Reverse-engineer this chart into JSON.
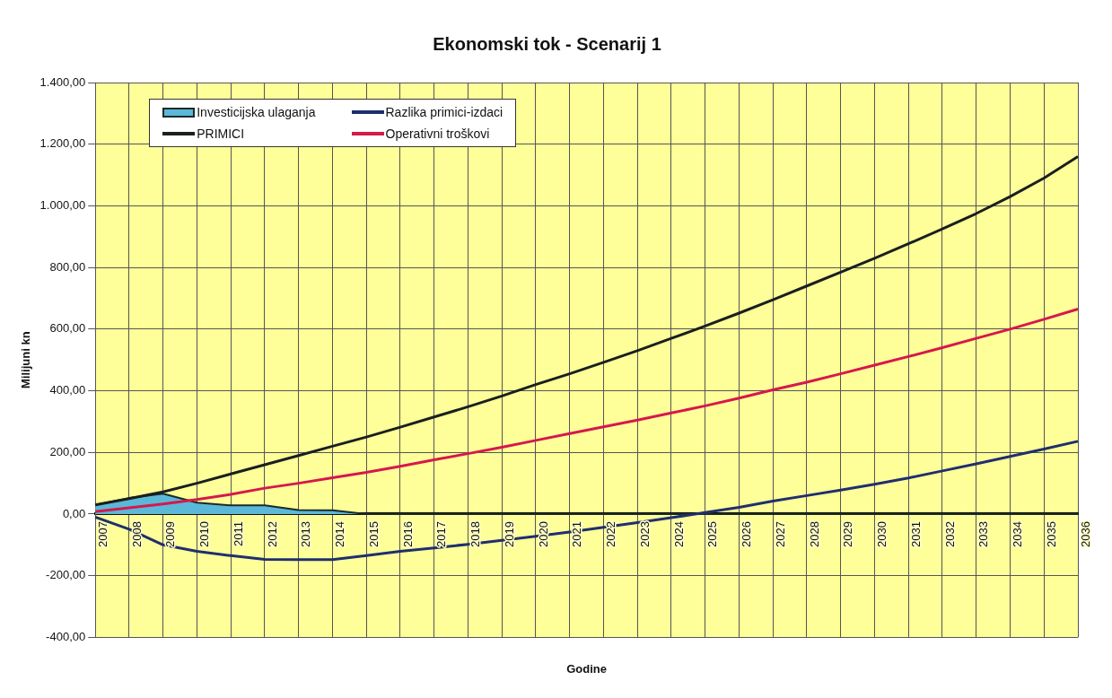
{
  "chart_data": {
    "type": "line",
    "title": "Ekonomski tok - Scenarij 1",
    "xlabel": "Godine",
    "ylabel": "Milijuni kn",
    "categories": [
      "2007",
      "2008",
      "2009",
      "2010",
      "2011",
      "2012",
      "2013",
      "2014",
      "2015",
      "2016",
      "2017",
      "2018",
      "2019",
      "2020",
      "2021",
      "2022",
      "2023",
      "2024",
      "2025",
      "2026",
      "2027",
      "2028",
      "2029",
      "2030",
      "2031",
      "2032",
      "2033",
      "2034",
      "2035",
      "2036"
    ],
    "series": [
      {
        "name": "Investicijska ulaganja",
        "type": "area",
        "color": "#5bb8d8",
        "values": [
          30,
          52,
          66,
          37,
          28,
          28,
          13,
          12,
          0,
          0,
          0,
          0,
          0,
          0,
          0,
          0,
          0,
          0,
          0,
          0,
          0,
          0,
          0,
          0,
          0,
          0,
          0,
          0,
          0,
          0
        ]
      },
      {
        "name": "Razlika primici-izdaci",
        "type": "line",
        "color": "#1f2f6e",
        "values": [
          -10,
          -49,
          -100,
          -121,
          -135,
          -147,
          -148,
          -148,
          -135,
          -121,
          -110,
          -98,
          -85,
          -72,
          -58,
          -43,
          -28,
          -12,
          5,
          22,
          42,
          60,
          78,
          97,
          117,
          140,
          163,
          187,
          211,
          236
        ]
      },
      {
        "name": "PRIMICI",
        "type": "line",
        "color": "#1a1f1f",
        "values": [
          30,
          50,
          72,
          100,
          130,
          160,
          190,
          220,
          250,
          282,
          315,
          348,
          383,
          420,
          455,
          492,
          530,
          570,
          610,
          652,
          695,
          740,
          785,
          830,
          877,
          925,
          975,
          1030,
          1090,
          1160
        ]
      },
      {
        "name": "Operativni troškovi",
        "type": "line",
        "color": "#d6184c",
        "values": [
          8,
          20,
          33,
          47,
          64,
          84,
          100,
          118,
          135,
          155,
          176,
          196,
          217,
          239,
          261,
          283,
          305,
          328,
          351,
          376,
          403,
          428,
          455,
          483,
          511,
          540,
          570,
          600,
          632,
          665
        ]
      }
    ],
    "ylim": [
      -400,
      1400
    ],
    "yticks": [
      {
        "value": -400,
        "label": "-400,00"
      },
      {
        "value": -200,
        "label": "-200,00"
      },
      {
        "value": 0,
        "label": "0,00"
      },
      {
        "value": 200,
        "label": "200,00"
      },
      {
        "value": 400,
        "label": "400,00"
      },
      {
        "value": 600,
        "label": "600,00"
      },
      {
        "value": 800,
        "label": "800,00"
      },
      {
        "value": 1000,
        "label": "1.000,00"
      },
      {
        "value": 1200,
        "label": "1.200,00"
      },
      {
        "value": 1400,
        "label": "1.400,00"
      }
    ],
    "grid": true,
    "legend": "top left",
    "marker": "none",
    "line_style": "solid"
  }
}
